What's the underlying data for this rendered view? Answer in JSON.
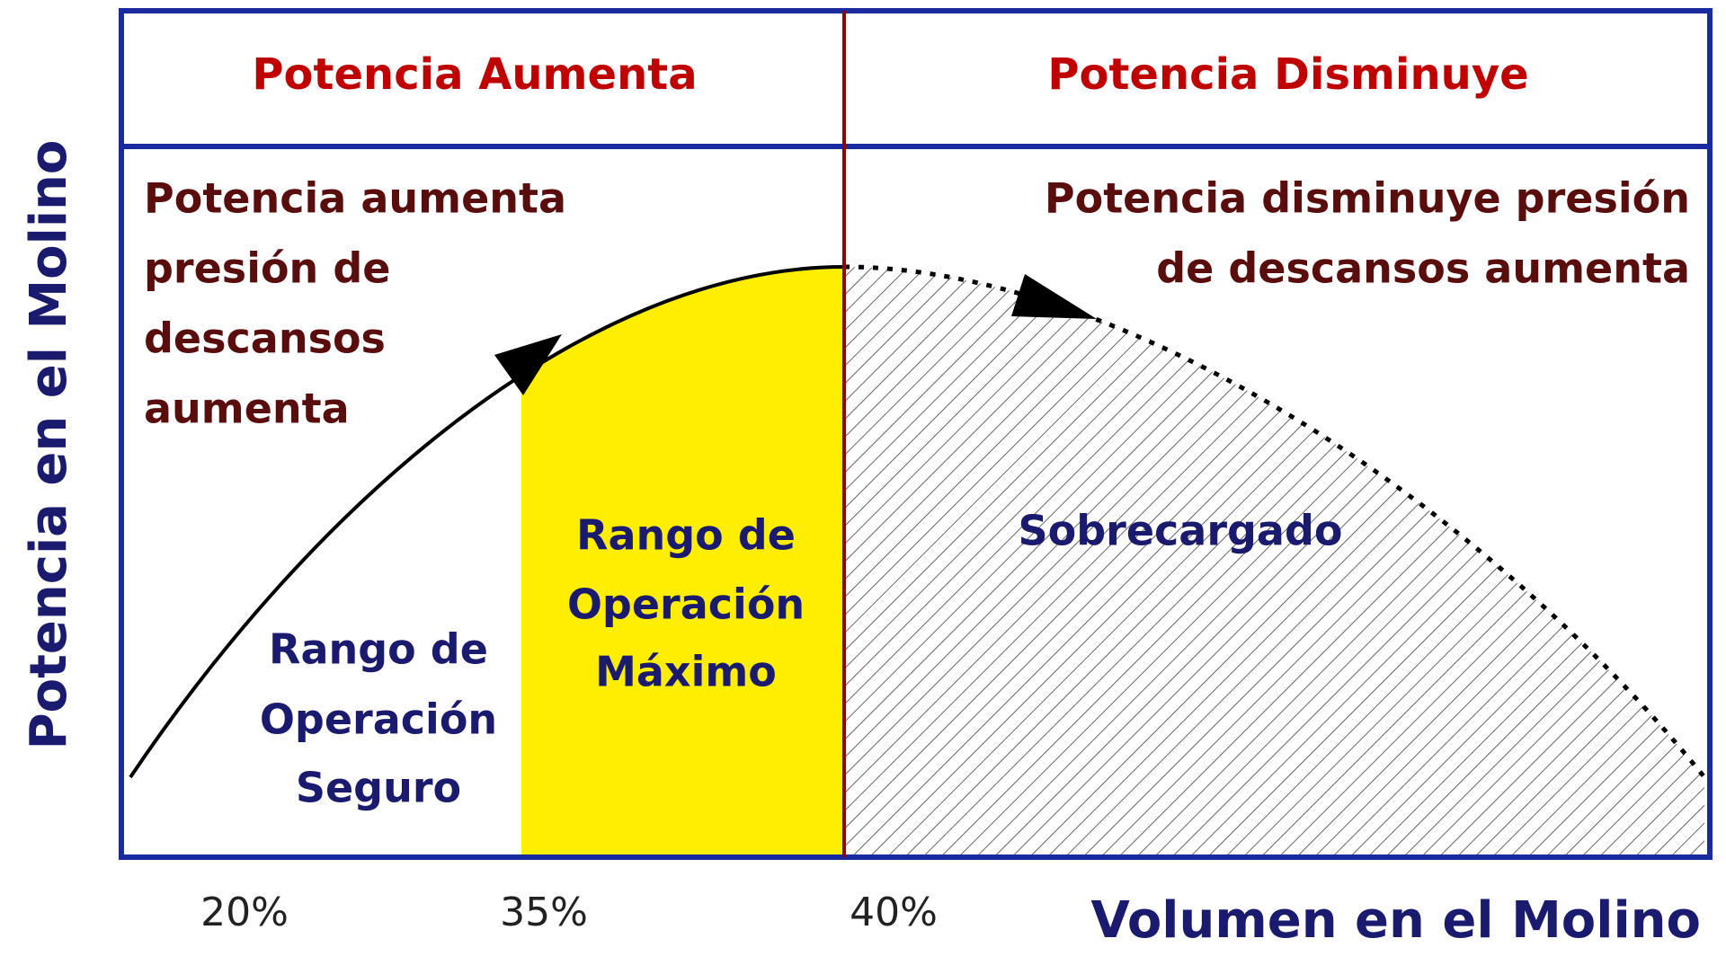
{
  "header": {
    "left": "Potencia Aumenta",
    "right": "Potencia Disminuye"
  },
  "left_description": [
    "Potencia aumenta",
    "presión de",
    "descansos",
    "aumenta"
  ],
  "right_description": [
    "Potencia disminuye presión",
    "de descansos aumenta"
  ],
  "zones": {
    "safe": [
      "Rango de",
      "Operación",
      "Seguro"
    ],
    "max": [
      "Rango de",
      "Operación",
      "Máximo"
    ],
    "overload": "Sobrecargado"
  },
  "y_axis_label": "Potencia en el Molino",
  "x_axis_label": "Volumen en el Molino",
  "x_labels": [
    "20%",
    "35%",
    "40%"
  ]
}
